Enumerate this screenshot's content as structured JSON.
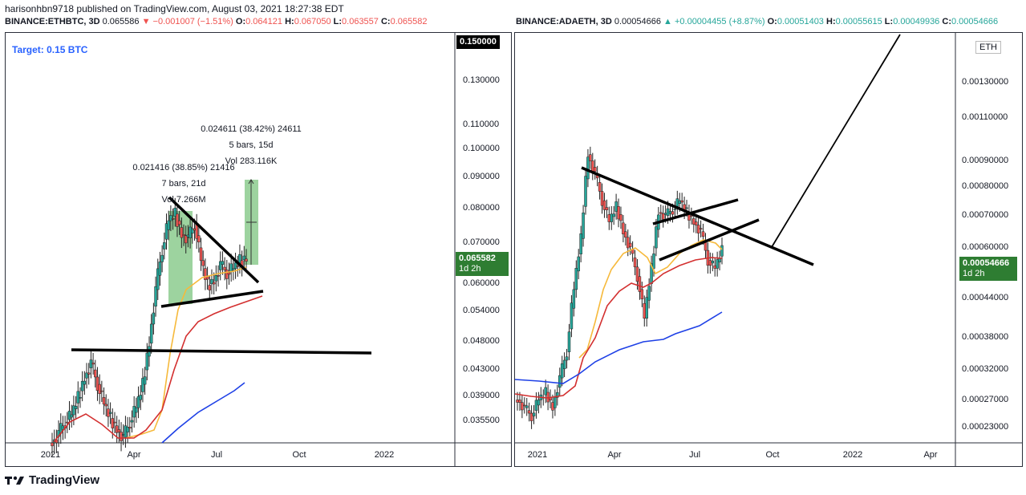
{
  "header": {
    "publisher": "harisonhbn9718 published on TradingView.com, August 03, 2021 18:27:38 EDT"
  },
  "left": {
    "symbol": "BINANCE:ETHBTC, 3D",
    "price": "0.065586",
    "change": "▼ −0.001007 (−1.51%)",
    "o_label": "O:",
    "o": "0.064121",
    "h_label": "H:",
    "h": "0.067050",
    "l_label": "L:",
    "l": "0.063557",
    "c_label": "C:",
    "c": "0.065582",
    "target": "Target: 0.15 BTC",
    "top_box": "0.150000",
    "last_price": "0.065582",
    "last_time": "1d 2h",
    "colors": {
      "up": "#26a69a",
      "down": "#ef5350",
      "ma_yellow": "#f6b93b",
      "ma_red": "#d32f2f",
      "ma_blue": "#1e40e6",
      "measure": "#4caf50"
    },
    "measure1": {
      "line1": "0.021416 (38.85%) 21416",
      "line2": "7 bars, 21d",
      "line3": "Vol 7.266M"
    },
    "measure2": {
      "line1": "0.024611 (38.42%) 24611",
      "line2": "5 bars, 15d",
      "line3": "Vol 283.116K"
    }
  },
  "right": {
    "symbol": "BINANCE:ADAETH, 3D",
    "price": "0.00054666",
    "change": "▲ +0.00004455 (+8.87%)",
    "o_label": "O:",
    "o": "0.00051403",
    "h_label": "H:",
    "h": "0.00055615",
    "l_label": "L:",
    "l": "0.00049936",
    "c_label": "C:",
    "c": "0.00054666",
    "currency": "ETH",
    "last_price": "0.00054666",
    "last_time": "1d 2h"
  },
  "footer": {
    "brand": "TradingView"
  },
  "chart_data": [
    {
      "type": "line",
      "title": "BINANCE:ETHBTC, 3D",
      "y_ticks": [
        "0.130000",
        "0.110000",
        "0.100000",
        "0.090000",
        "0.080000",
        "0.070000",
        "0.060000",
        "0.054000",
        "0.048000",
        "0.043000",
        "0.039000",
        "0.035500"
      ],
      "x_ticks": [
        "2021",
        "Apr",
        "Jul",
        "Oct",
        "2022"
      ],
      "scale": "log",
      "series": [
        {
          "values": [
            0.0318,
            0.033,
            0.0345,
            0.0355,
            0.038,
            0.041,
            0.0435,
            0.04,
            0.037,
            0.035,
            0.0335,
            0.0325,
            0.0345,
            0.0365,
            0.04,
            0.047,
            0.058,
            0.068,
            0.076,
            0.078,
            0.072,
            0.071,
            0.075,
            0.065,
            0.059,
            0.06,
            0.064,
            0.062,
            0.063,
            0.065,
            0.0656
          ]
        }
      ]
    },
    {
      "type": "line",
      "title": "BINANCE:ADAETH, 3D",
      "y_ticks": [
        "0.00130000",
        "0.00110000",
        "0.00090000",
        "0.00080000",
        "0.00070000",
        "0.00060000",
        "0.00044000",
        "0.00038000",
        "0.00032000",
        "0.00027000",
        "0.00023000"
      ],
      "x_ticks": [
        "2021",
        "Apr",
        "Jul",
        "Oct",
        "2022",
        "Apr"
      ],
      "scale": "log",
      "series": [
        {
          "values": [
            0.00026,
            0.00025,
            0.00024,
            0.00026,
            0.00027,
            0.00025,
            0.00029,
            0.00033,
            0.00045,
            0.00058,
            0.00088,
            0.0008,
            0.0007,
            0.00063,
            0.00068,
            0.0006,
            0.00055,
            0.00048,
            0.00039,
            0.0005,
            0.00066,
            0.00065,
            0.00067,
            0.0007,
            0.00066,
            0.00063,
            0.0006,
            0.00052,
            0.0005,
            0.000547
          ]
        }
      ]
    }
  ]
}
